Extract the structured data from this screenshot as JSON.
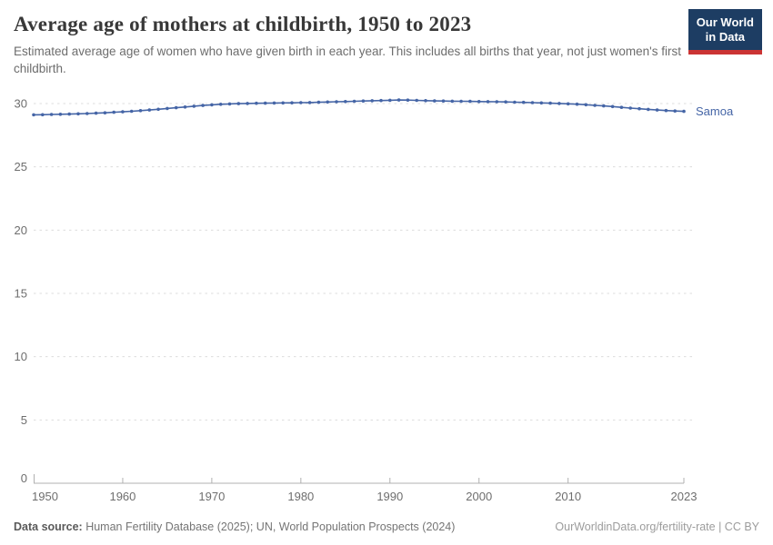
{
  "header": {
    "title": "Average age of mothers at childbirth, 1950 to 2023",
    "subtitle": "Estimated average age of women who have given birth in each year. This includes all births that year, not just women's first childbirth.",
    "logo_line1": "Our World",
    "logo_line2": "in Data"
  },
  "footer": {
    "data_source_label": "Data source:",
    "data_source_text": " Human Fertility Database (2025); UN, World Population Prospects (2024)",
    "attribution": "OurWorldinData.org/fertility-rate | CC BY"
  },
  "colors": {
    "line": "#4565a6",
    "grid": "#dcdcdc",
    "axis": "#b0b0b0",
    "tick_label": "#6e6e6e",
    "logo_bg": "#1d3d63",
    "logo_red": "#cb3434"
  },
  "chart_data": {
    "type": "line",
    "title": "Average age of mothers at childbirth, 1950 to 2023",
    "xlabel": "",
    "ylabel": "",
    "xlim": [
      1950,
      2023
    ],
    "ylim": [
      0,
      32
    ],
    "xticks": [
      1950,
      1960,
      1970,
      1980,
      1990,
      2000,
      2010,
      2023
    ],
    "yticks": [
      0,
      5,
      10,
      15,
      20,
      25,
      30
    ],
    "grid": "dashed-horizontal",
    "legend": "end-of-line-label",
    "series": [
      {
        "name": "Samoa",
        "color": "#4565a6",
        "x": [
          1950,
          1951,
          1952,
          1953,
          1954,
          1955,
          1956,
          1957,
          1958,
          1959,
          1960,
          1961,
          1962,
          1963,
          1964,
          1965,
          1966,
          1967,
          1968,
          1969,
          1970,
          1971,
          1972,
          1973,
          1974,
          1975,
          1976,
          1977,
          1978,
          1979,
          1980,
          1981,
          1982,
          1983,
          1984,
          1985,
          1986,
          1987,
          1988,
          1989,
          1990,
          1991,
          1992,
          1993,
          1994,
          1995,
          1996,
          1997,
          1998,
          1999,
          2000,
          2001,
          2002,
          2003,
          2004,
          2005,
          2006,
          2007,
          2008,
          2009,
          2010,
          2011,
          2012,
          2013,
          2014,
          2015,
          2016,
          2017,
          2018,
          2019,
          2020,
          2021,
          2022,
          2023
        ],
        "values": [
          29.11,
          29.12,
          29.14,
          29.15,
          29.17,
          29.19,
          29.21,
          29.24,
          29.27,
          29.31,
          29.35,
          29.39,
          29.44,
          29.49,
          29.55,
          29.61,
          29.67,
          29.73,
          29.79,
          29.85,
          29.9,
          29.94,
          29.97,
          29.99,
          30.01,
          30.02,
          30.03,
          30.04,
          30.05,
          30.06,
          30.07,
          30.08,
          30.1,
          30.12,
          30.14,
          30.16,
          30.18,
          30.2,
          30.22,
          30.24,
          30.26,
          30.28,
          30.27,
          30.25,
          30.23,
          30.21,
          30.2,
          30.19,
          30.18,
          30.17,
          30.16,
          30.15,
          30.14,
          30.13,
          30.11,
          30.09,
          30.07,
          30.05,
          30.03,
          30.01,
          29.98,
          29.95,
          29.91,
          29.86,
          29.81,
          29.76,
          29.7,
          29.64,
          29.59,
          29.54,
          29.49,
          29.45,
          29.41,
          29.38
        ]
      }
    ]
  }
}
